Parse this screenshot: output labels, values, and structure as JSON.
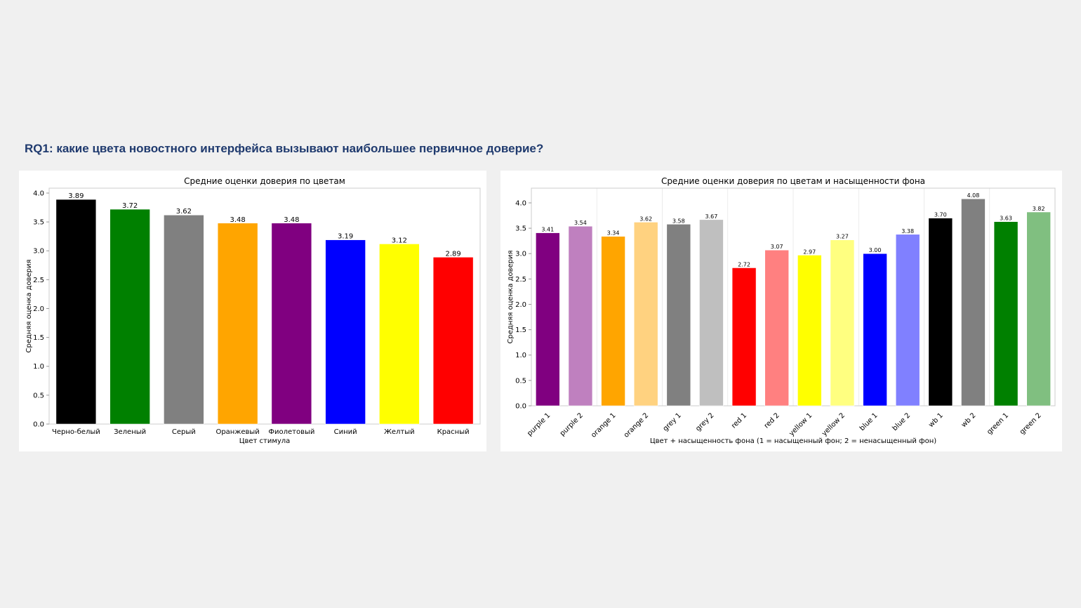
{
  "slide": {
    "title": "RQ1: какие цвета новостного интерфейса вызывают наибольшее первичное доверие?"
  },
  "chart_data": [
    {
      "type": "bar",
      "title": "Средние оценки доверия по цветам",
      "xlabel": "Цвет стимула",
      "ylabel": "Средняя оценка доверия",
      "ylim": [
        0,
        4.085
      ],
      "yticks": [
        "0.0",
        "0.5",
        "1.0",
        "1.5",
        "2.0",
        "2.5",
        "3.0",
        "3.5",
        "4.0"
      ],
      "categories": [
        "Черно-белый",
        "Зеленый",
        "Серый",
        "Оранжевый",
        "Фиолетовый",
        "Синий",
        "Желтый",
        "Красный"
      ],
      "values": [
        3.89,
        3.72,
        3.62,
        3.48,
        3.48,
        3.19,
        3.12,
        2.89
      ],
      "labels": [
        "3.89",
        "3.72",
        "3.62",
        "3.48",
        "3.48",
        "3.19",
        "3.12",
        "2.89"
      ],
      "colors": [
        "#000000",
        "#008000",
        "#808080",
        "#ffa500",
        "#800080",
        "#0000ff",
        "#ffff00",
        "#ff0000"
      ],
      "grid": false
    },
    {
      "type": "bar",
      "title": "Средние оценки доверия по цветам и насыщенности фона",
      "xlabel": "Цвет + насыщенность фона (1 = насыщенный фон; 2 = ненасыщенный фон)",
      "ylabel": "Средняя оценка доверия",
      "ylim": [
        0,
        4.29
      ],
      "yticks": [
        "0.0",
        "0.5",
        "1.0",
        "1.5",
        "2.0",
        "2.5",
        "3.0",
        "3.5",
        "4.0"
      ],
      "categories": [
        "purple 1",
        "purple 2",
        "orange 1",
        "orange 2",
        "grey 1",
        "grey 2",
        "red 1",
        "red 2",
        "yellow 1",
        "yellow 2",
        "blue 1",
        "blue 2",
        "wb 1",
        "wb 2",
        "green 1",
        "green 2"
      ],
      "values": [
        3.41,
        3.54,
        3.34,
        3.62,
        3.58,
        3.67,
        2.72,
        3.07,
        2.97,
        3.27,
        3.0,
        3.38,
        3.7,
        4.08,
        3.63,
        3.82
      ],
      "labels": [
        "3.41",
        "3.54",
        "3.34",
        "3.62",
        "3.58",
        "3.67",
        "2.72",
        "3.07",
        "2.97",
        "3.27",
        "3.00",
        "3.38",
        "3.70",
        "4.08",
        "3.63",
        "3.82"
      ],
      "colors": [
        "#800080",
        "#bf80bf",
        "#ffa500",
        "#ffd280",
        "#808080",
        "#bfbfbf",
        "#ff0000",
        "#ff8080",
        "#ffff00",
        "#ffff80",
        "#0000ff",
        "#8080ff",
        "#000000",
        "#808080",
        "#008000",
        "#80bf80"
      ],
      "grid": "vertical between color groups"
    }
  ]
}
